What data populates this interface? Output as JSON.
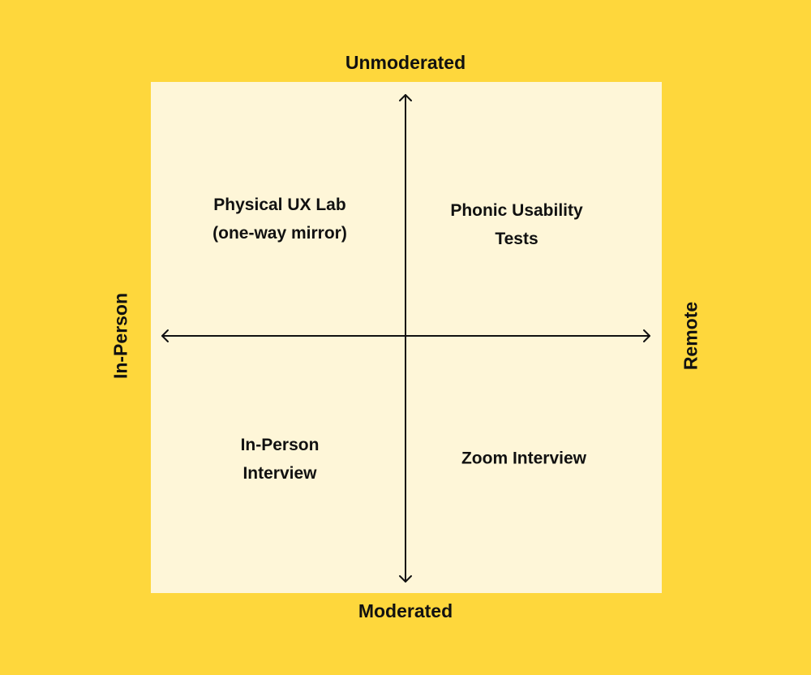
{
  "axes": {
    "top": "Unmoderated",
    "bottom": "Moderated",
    "left": "In-Person",
    "right": "Remote"
  },
  "quadrants": {
    "top_left": [
      "Physical UX Lab",
      "(one-way mirror)"
    ],
    "top_right": [
      "Phonic Usability",
      "Tests"
    ],
    "bottom_left": [
      "In-Person",
      "Interview"
    ],
    "bottom_right": [
      "Zoom Interview"
    ]
  },
  "colors": {
    "background": "#FED73C",
    "panel": "#FEF6D8",
    "ink": "#111111"
  }
}
